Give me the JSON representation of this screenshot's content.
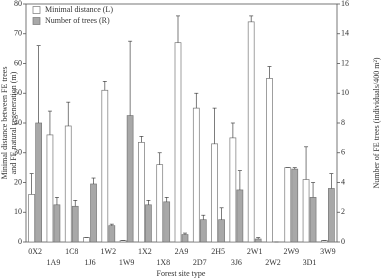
{
  "chart_data": {
    "type": "bar",
    "x_label": "Forest site type",
    "y_label": [
      "Minimal distance between FE trees",
      "and FE natural regeneration (m)"
    ],
    "y2_label": "Number of FE trees (individuals/400 m²)",
    "categories": [
      "0X2",
      "1A9",
      "1C8",
      "1J6",
      "1W2",
      "1W9",
      "1X2",
      "1X8",
      "2A9",
      "2D7",
      "2H5",
      "3J6",
      "2W1",
      "2W2",
      "2W9",
      "3D1",
      "3W9"
    ],
    "series": [
      {
        "name": "Minimal distance (L)",
        "color": "#ffffff",
        "axis": "y",
        "values": [
          16,
          36,
          39,
          1.5,
          51,
          0.5,
          33.5,
          26,
          67,
          45,
          33,
          35,
          74,
          55,
          25,
          21,
          0.5
        ],
        "errors": [
          7,
          8,
          8,
          0,
          3,
          0,
          2,
          4,
          9,
          5,
          12,
          5,
          2,
          4,
          0,
          11,
          0
        ]
      },
      {
        "name": "Number of trees (R)",
        "color": "#a8a8a8",
        "axis": "y2",
        "values": [
          8,
          2.5,
          2.4,
          3.9,
          1.1,
          8.5,
          2.5,
          2.7,
          0.5,
          1.5,
          1.5,
          3.5,
          0.2,
          0,
          4.9,
          3,
          3.6
        ],
        "errors": [
          5.2,
          0.5,
          0.4,
          0.4,
          0.1,
          5,
          0.3,
          0.3,
          0.1,
          0.3,
          0.8,
          1.3,
          0.1,
          0,
          0.1,
          1,
          1
        ]
      }
    ],
    "ylim": [
      0,
      80
    ],
    "yticks": [
      0,
      10,
      20,
      30,
      40,
      50,
      60,
      70,
      80
    ],
    "y2lim": [
      0,
      16
    ],
    "y2ticks": [
      0,
      2,
      4,
      6,
      8,
      10,
      12,
      14,
      16
    ]
  }
}
